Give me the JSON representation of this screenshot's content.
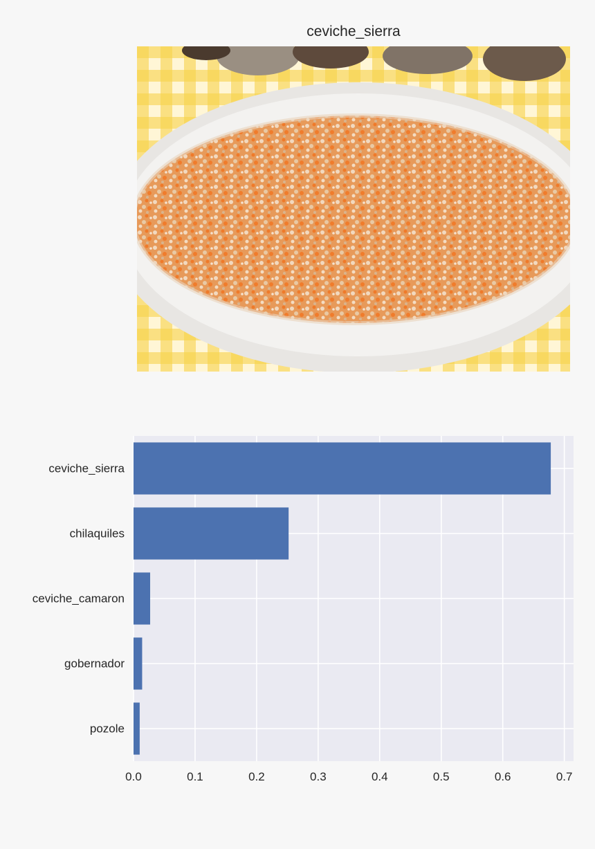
{
  "image": {
    "title": "ceviche_sierra",
    "subject": "ceviche-plate-photo"
  },
  "colors": {
    "bar": "#4c72b0",
    "plot_bg": "#eaeaf2",
    "grid": "#ffffff",
    "page_bg": "#f7f7f7"
  },
  "chart_data": {
    "type": "bar",
    "orientation": "horizontal",
    "title": "",
    "xlabel": "",
    "ylabel": "",
    "categories": [
      "ceviche_sierra",
      "chilaquiles",
      "ceviche_camaron",
      "gobernador",
      "pozole"
    ],
    "values": [
      0.678,
      0.252,
      0.027,
      0.014,
      0.01
    ],
    "xlim": [
      0,
      0.715
    ],
    "xticks": [
      0.0,
      0.1,
      0.2,
      0.3,
      0.4,
      0.5,
      0.6,
      0.7
    ],
    "xtick_labels": [
      "0.0",
      "0.1",
      "0.2",
      "0.3",
      "0.4",
      "0.5",
      "0.6",
      "0.7"
    ],
    "grid": true,
    "legend": "none"
  }
}
